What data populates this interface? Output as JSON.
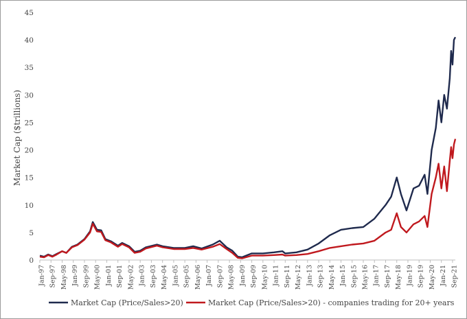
{
  "chart_data": {
    "type": "line",
    "title": "",
    "xlabel": "",
    "ylabel": "Market Cap ($trillions)",
    "ylim": [
      0,
      45
    ],
    "yticks": [
      0,
      5,
      10,
      15,
      20,
      25,
      30,
      35,
      40,
      45
    ],
    "grid": false,
    "legend_position": "bottom",
    "x_tick_labels": [
      "Jan-97",
      "Sep-97",
      "May-98",
      "Jan-99",
      "Sep-99",
      "May-00",
      "Jan-01",
      "Sep-01",
      "May-02",
      "Jan-03",
      "Sep-03",
      "May-04",
      "Jan-05",
      "Sep-05",
      "May-06",
      "Jan-07",
      "Sep-07",
      "May-08",
      "Jan-09",
      "Sep-09",
      "May-10",
      "Jan-11",
      "Sep-11",
      "May-12",
      "Jan-13",
      "Sep-13",
      "May-14",
      "Jan-15",
      "Sep-15",
      "May-16",
      "Jan-17",
      "Sep-17",
      "May-18",
      "Jan-19",
      "Sep-19",
      "May-20",
      "Jan-21",
      "Sep-21"
    ],
    "series": [
      {
        "name": "Market Cap (Price/Sales>20)",
        "color": "#1f2a4d",
        "points": [
          [
            "Jan-97",
            0.8
          ],
          [
            "Apr-97",
            0.6
          ],
          [
            "Jul-97",
            1.0
          ],
          [
            "Oct-97",
            0.7
          ],
          [
            "Jan-98",
            1.1
          ],
          [
            "May-98",
            1.6
          ],
          [
            "Aug-98",
            1.3
          ],
          [
            "Dec-98",
            2.4
          ],
          [
            "Apr-99",
            2.8
          ],
          [
            "Sep-99",
            3.8
          ],
          [
            "Jan-00",
            5.2
          ],
          [
            "Mar-00",
            6.9
          ],
          [
            "Jun-00",
            5.5
          ],
          [
            "Sep-00",
            5.4
          ],
          [
            "Dec-00",
            3.8
          ],
          [
            "Apr-01",
            3.4
          ],
          [
            "Sep-01",
            2.6
          ],
          [
            "Dec-01",
            3.1
          ],
          [
            "May-02",
            2.5
          ],
          [
            "Sep-02",
            1.5
          ],
          [
            "Jan-03",
            1.7
          ],
          [
            "May-03",
            2.3
          ],
          [
            "Jan-04",
            2.8
          ],
          [
            "May-04",
            2.5
          ],
          [
            "Jan-05",
            2.2
          ],
          [
            "Sep-05",
            2.2
          ],
          [
            "Mar-06",
            2.5
          ],
          [
            "Sep-06",
            2.1
          ],
          [
            "May-07",
            2.8
          ],
          [
            "Oct-07",
            3.5
          ],
          [
            "Mar-08",
            2.3
          ],
          [
            "Jul-08",
            1.7
          ],
          [
            "Nov-08",
            0.6
          ],
          [
            "Feb-09",
            0.5
          ],
          [
            "Sep-09",
            1.2
          ],
          [
            "May-10",
            1.2
          ],
          [
            "Jan-11",
            1.4
          ],
          [
            "Jul-11",
            1.6
          ],
          [
            "Sep-11",
            1.2
          ],
          [
            "May-12",
            1.4
          ],
          [
            "Jan-13",
            1.9
          ],
          [
            "Sep-13",
            3.0
          ],
          [
            "May-14",
            4.5
          ],
          [
            "Jan-15",
            5.5
          ],
          [
            "Sep-15",
            5.8
          ],
          [
            "May-16",
            6.0
          ],
          [
            "Jan-17",
            7.5
          ],
          [
            "Sep-17",
            10.0
          ],
          [
            "Jan-18",
            11.5
          ],
          [
            "May-18",
            15.0
          ],
          [
            "Aug-18",
            12.0
          ],
          [
            "Dec-18",
            9.0
          ],
          [
            "May-19",
            13.0
          ],
          [
            "Sep-19",
            13.5
          ],
          [
            "Jan-20",
            15.5
          ],
          [
            "Mar-20",
            12.0
          ],
          [
            "Jun-20",
            20.0
          ],
          [
            "Sep-20",
            24.0
          ],
          [
            "Nov-20",
            29.0
          ],
          [
            "Jan-21",
            25.0
          ],
          [
            "Mar-21",
            30.0
          ],
          [
            "May-21",
            27.5
          ],
          [
            "Jul-21",
            33.0
          ],
          [
            "Aug-21",
            38.0
          ],
          [
            "Sep-21",
            35.5
          ],
          [
            "Oct-21",
            40.0
          ],
          [
            "Nov-21",
            40.5
          ]
        ]
      },
      {
        "name": "Market Cap (Price/Sales>20) - companies trading for 20+ years",
        "color": "#c0191e",
        "points": [
          [
            "Jan-97",
            0.6
          ],
          [
            "Apr-97",
            0.5
          ],
          [
            "Jul-97",
            0.9
          ],
          [
            "Oct-97",
            0.6
          ],
          [
            "Jan-98",
            1.0
          ],
          [
            "May-98",
            1.6
          ],
          [
            "Aug-98",
            1.3
          ],
          [
            "Dec-98",
            2.3
          ],
          [
            "Apr-99",
            2.7
          ],
          [
            "Sep-99",
            3.7
          ],
          [
            "Jan-00",
            5.0
          ],
          [
            "Mar-00",
            6.6
          ],
          [
            "Jun-00",
            5.2
          ],
          [
            "Sep-00",
            5.1
          ],
          [
            "Dec-00",
            3.6
          ],
          [
            "Apr-01",
            3.2
          ],
          [
            "Sep-01",
            2.4
          ],
          [
            "Dec-01",
            2.9
          ],
          [
            "May-02",
            2.3
          ],
          [
            "Sep-02",
            1.3
          ],
          [
            "Jan-03",
            1.5
          ],
          [
            "May-03",
            2.1
          ],
          [
            "Jan-04",
            2.6
          ],
          [
            "May-04",
            2.3
          ],
          [
            "Jan-05",
            2.0
          ],
          [
            "Sep-05",
            2.0
          ],
          [
            "Mar-06",
            2.2
          ],
          [
            "Sep-06",
            1.9
          ],
          [
            "May-07",
            2.4
          ],
          [
            "Oct-07",
            2.9
          ],
          [
            "Mar-08",
            2.0
          ],
          [
            "Jul-08",
            1.3
          ],
          [
            "Nov-08",
            0.4
          ],
          [
            "Feb-09",
            0.3
          ],
          [
            "Sep-09",
            0.8
          ],
          [
            "May-10",
            0.8
          ],
          [
            "Jan-11",
            0.9
          ],
          [
            "Jul-11",
            1.0
          ],
          [
            "Sep-11",
            0.8
          ],
          [
            "May-12",
            0.9
          ],
          [
            "Jan-13",
            1.1
          ],
          [
            "Sep-13",
            1.6
          ],
          [
            "May-14",
            2.2
          ],
          [
            "Jan-15",
            2.5
          ],
          [
            "Sep-15",
            2.8
          ],
          [
            "May-16",
            3.0
          ],
          [
            "Jan-17",
            3.5
          ],
          [
            "Sep-17",
            5.0
          ],
          [
            "Jan-18",
            5.5
          ],
          [
            "May-18",
            8.5
          ],
          [
            "Aug-18",
            6.0
          ],
          [
            "Dec-18",
            5.0
          ],
          [
            "May-19",
            6.5
          ],
          [
            "Sep-19",
            7.0
          ],
          [
            "Jan-20",
            8.0
          ],
          [
            "Mar-20",
            6.0
          ],
          [
            "Jun-20",
            12.0
          ],
          [
            "Sep-20",
            15.0
          ],
          [
            "Nov-20",
            17.5
          ],
          [
            "Jan-21",
            13.0
          ],
          [
            "Mar-21",
            17.0
          ],
          [
            "May-21",
            12.5
          ],
          [
            "Jul-21",
            18.0
          ],
          [
            "Aug-21",
            20.5
          ],
          [
            "Sep-21",
            18.5
          ],
          [
            "Oct-21",
            21.0
          ],
          [
            "Nov-21",
            22.0
          ]
        ]
      }
    ]
  }
}
